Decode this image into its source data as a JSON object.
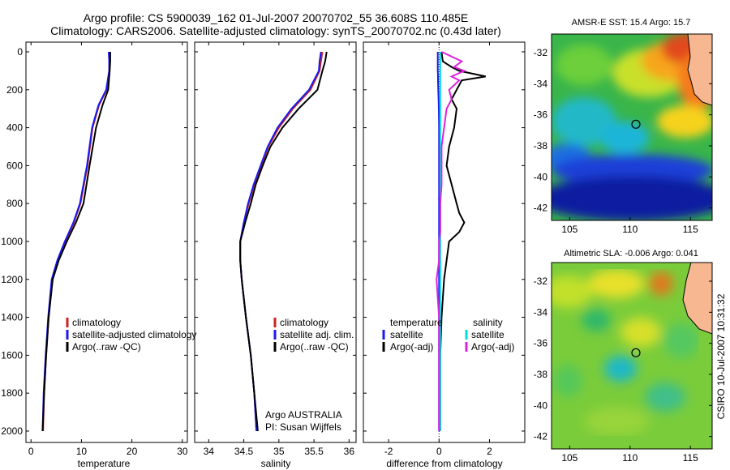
{
  "header": {
    "line1": "Argo profile: CS 5900039_162 01-Jul-2007 20070702_55 36.608S 110.485E",
    "line2": "Climatology: CARS2006. Satellite-adjusted climatology: synTS_20070702.nc (0.43d later)"
  },
  "colors": {
    "climatology": "#cc2222",
    "satellite": "#1a1aee",
    "argo": "#000000",
    "sat_diff": "#00dddd",
    "argo_sal_diff": "#dd22dd"
  },
  "chart_data": [
    {
      "type": "line",
      "name": "temperature",
      "xlabel": "temperature",
      "xlim": [
        -1,
        31
      ],
      "ylim": [
        0,
        2060
      ],
      "xticks": [
        "0",
        "10",
        "20",
        "30"
      ],
      "yticks": [
        "0",
        "200",
        "400",
        "600",
        "800",
        "1000",
        "1200",
        "1400",
        "1600",
        "1800",
        "2000"
      ],
      "depth": [
        0,
        50,
        100,
        200,
        280,
        400,
        600,
        800,
        900,
        1000,
        1100,
        1200,
        1400,
        1600,
        1800,
        2000
      ],
      "series": [
        {
          "name": "climatology",
          "values": [
            15.6,
            15.6,
            15.6,
            15.0,
            13.5,
            12.2,
            11.2,
            9.8,
            8.5,
            6.8,
            5.3,
            4.2,
            3.5,
            3.0,
            2.6,
            2.4
          ]
        },
        {
          "name": "satellite-adjusted climatology",
          "values": [
            15.4,
            15.5,
            15.5,
            14.9,
            13.4,
            12.1,
            11.1,
            9.7,
            8.4,
            6.7,
            5.2,
            4.1,
            3.4,
            2.9,
            2.5,
            2.3
          ]
        },
        {
          "name": "Argo(..raw -QC)",
          "values": [
            15.7,
            15.7,
            15.6,
            15.3,
            14.2,
            12.9,
            11.6,
            10.4,
            8.9,
            7.1,
            5.5,
            4.3,
            3.5,
            3.0,
            2.6,
            2.3
          ]
        }
      ],
      "legend": [
        "climatology",
        "satellite-adjusted climatology",
        "Argo(..raw -QC)"
      ]
    },
    {
      "type": "line",
      "name": "salinity",
      "xlabel": "salinity",
      "xlim": [
        33.8,
        36.1
      ],
      "ylim": [
        0,
        2060
      ],
      "xticks": [
        "34",
        "34.5",
        "35",
        "35.5",
        "36"
      ],
      "depth": [
        0,
        50,
        100,
        200,
        300,
        400,
        500,
        600,
        700,
        800,
        900,
        1000,
        1100,
        1200,
        1400,
        1600,
        1800,
        2000
      ],
      "series": [
        {
          "name": "climatology",
          "values": [
            35.62,
            35.6,
            35.58,
            35.45,
            35.2,
            35.0,
            34.85,
            34.75,
            34.65,
            34.57,
            34.5,
            34.45,
            34.45,
            34.47,
            34.53,
            34.6,
            34.65,
            34.68
          ]
        },
        {
          "name": "satellite adj. clim.",
          "values": [
            35.6,
            35.58,
            35.57,
            35.43,
            35.18,
            34.98,
            34.84,
            34.74,
            34.64,
            34.56,
            34.5,
            34.45,
            34.45,
            34.47,
            34.53,
            34.6,
            34.65,
            34.68
          ]
        },
        {
          "name": "Argo(..raw -QC)",
          "values": [
            35.68,
            35.66,
            35.62,
            35.55,
            35.28,
            35.05,
            34.88,
            34.77,
            34.67,
            34.6,
            34.52,
            34.45,
            34.45,
            34.47,
            34.53,
            34.6,
            34.65,
            34.7
          ]
        }
      ],
      "legend": [
        "climatology",
        "satellite adj. clim.",
        "Argo(..raw -QC)"
      ],
      "annotation1": "Argo AUSTRALIA",
      "annotation2": "PI: Susan Wijffels"
    },
    {
      "type": "line",
      "name": "difference",
      "xlabel": "difference from climatology",
      "xlim": [
        -3,
        3.4
      ],
      "ylim": [
        0,
        2060
      ],
      "xticks": [
        "-2",
        "0",
        "2"
      ],
      "depth": [
        0,
        50,
        80,
        100,
        130,
        150,
        200,
        250,
        300,
        400,
        500,
        600,
        700,
        800,
        850,
        900,
        950,
        1000,
        1100,
        1200,
        1400,
        1600,
        1800,
        2000
      ],
      "series": [
        {
          "name": "temperature satellite",
          "values": [
            -0.05,
            -0.05,
            -0.05,
            -0.05,
            -0.04,
            -0.04,
            -0.03,
            -0.02,
            -0.01,
            0,
            0,
            0,
            0,
            0,
            0,
            0,
            0,
            0,
            0,
            0,
            0,
            0,
            0,
            0
          ]
        },
        {
          "name": "temperature Argo(-adj)",
          "values": [
            0.1,
            0.15,
            0.5,
            0.8,
            1.85,
            0.9,
            0.7,
            0.5,
            0.7,
            0.6,
            0.4,
            0.3,
            0.5,
            0.7,
            0.8,
            1.0,
            0.8,
            0.4,
            0.3,
            0.2,
            0.1,
            0.05,
            0.05,
            0.05
          ]
        },
        {
          "name": "salinity satellite",
          "values": [
            0.05,
            0.05,
            0.05,
            0.05,
            0.05,
            0.05,
            0.05,
            0.05,
            0.05,
            0.05,
            0.05,
            0.05,
            0.05,
            0.05,
            0.05,
            0.05,
            0.05,
            0.05,
            0.05,
            0.05,
            0.05,
            0.05,
            0.05,
            0.05
          ]
        },
        {
          "name": "salinity Argo(-adj)",
          "values": [
            0.1,
            0.9,
            0.6,
            1.0,
            0.5,
            0.8,
            0.4,
            0.5,
            0.3,
            0.2,
            0.1,
            0.1,
            0.1,
            0.05,
            0.05,
            0.05,
            0.05,
            0,
            0,
            -0.1,
            0,
            0,
            0,
            0
          ]
        }
      ],
      "legend_left_header": "temperature",
      "legend_right_header": "salinity",
      "legend_left": [
        "satellite",
        "Argo(-adj)"
      ],
      "legend_right": [
        "satellite",
        "Argo(-adj)"
      ]
    },
    {
      "type": "heatmap",
      "name": "sst-map",
      "title": "AMSR-E SST: 15.4 Argo: 15.7",
      "xticks": [
        "105",
        "110",
        "115"
      ],
      "yticks": [
        "-32",
        "-34",
        "-36",
        "-38",
        "-40",
        "-42"
      ],
      "marker_lon": 110.485,
      "marker_lat": -36.608
    },
    {
      "type": "heatmap",
      "name": "sla-map",
      "title": "Altimetric SLA: -0.006 Argo: 0.041",
      "xticks": [
        "105",
        "110",
        "115"
      ],
      "yticks": [
        "-32",
        "-34",
        "-36",
        "-38",
        "-40",
        "-42"
      ],
      "marker_lon": 110.485,
      "marker_lat": -36.608
    }
  ],
  "side_text": "CSIRO 10-Jul-2007 10:31:32"
}
